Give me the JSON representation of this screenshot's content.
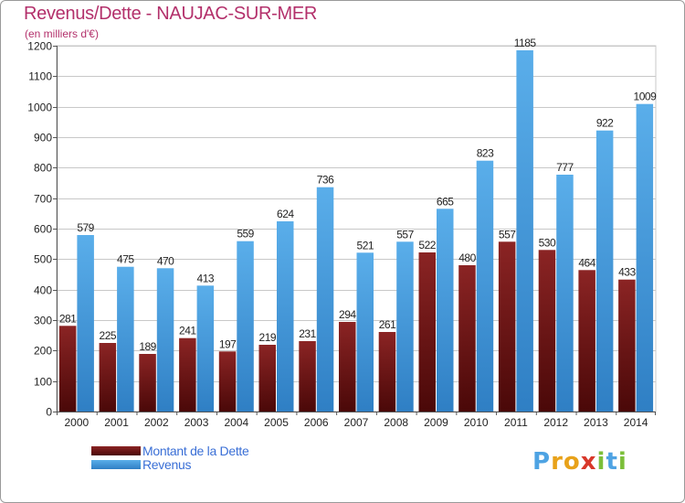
{
  "title": "Revenus/Dette - NAUJAC-SUR-MER",
  "subtitle": "(en milliers d'€)",
  "logo": "Proxiti",
  "colors": {
    "debt": "#7a1c1c",
    "revenue": "#4ea3e3",
    "title": "#b3306b",
    "legend_text": "#3a6fd6",
    "grid": "#c8c8c8"
  },
  "chart_data": {
    "type": "bar",
    "categories": [
      "2000",
      "2001",
      "2002",
      "2003",
      "2004",
      "2005",
      "2006",
      "2007",
      "2008",
      "2009",
      "2010",
      "2011",
      "2012",
      "2013",
      "2014"
    ],
    "series": [
      {
        "name": "Montant de la Dette",
        "values": [
          281,
          225,
          189,
          241,
          197,
          219,
          231,
          294,
          261,
          522,
          480,
          557,
          530,
          464,
          433
        ]
      },
      {
        "name": "Revenus",
        "values": [
          579,
          475,
          470,
          413,
          559,
          624,
          736,
          521,
          557,
          665,
          823,
          1185,
          777,
          922,
          1009
        ]
      }
    ],
    "title": "Revenus/Dette - NAUJAC-SUR-MER",
    "subtitle": "(en milliers d'€)",
    "ylim": [
      0,
      1200
    ],
    "yticks": [
      0,
      100,
      200,
      300,
      400,
      500,
      600,
      700,
      800,
      900,
      1000,
      1100,
      1200
    ],
    "grid": true,
    "legend": "bottom-left"
  }
}
